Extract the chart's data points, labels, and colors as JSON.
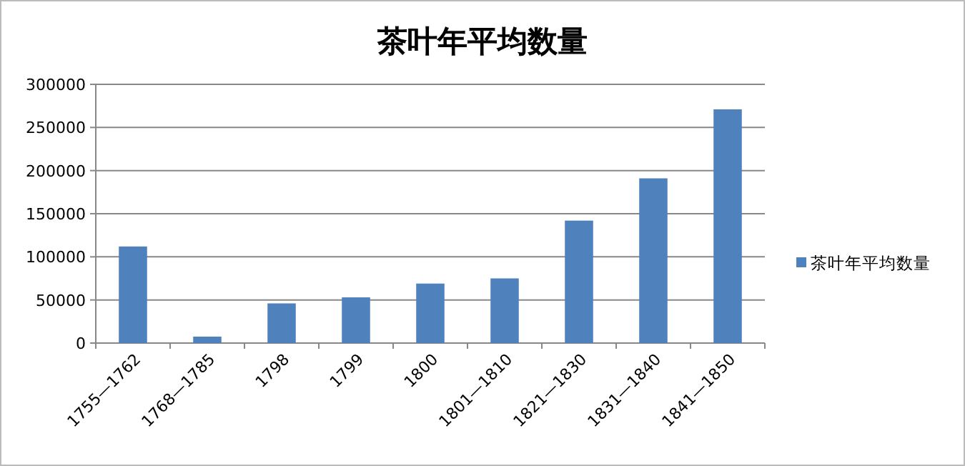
{
  "chart_data": {
    "type": "bar",
    "title": "茶叶年平均数量",
    "categories": [
      "1755—1762",
      "1768—1785",
      "1798",
      "1799",
      "1800",
      "1801—1810",
      "1821—1830",
      "1831—1840",
      "1841—1850"
    ],
    "series": [
      {
        "name": "茶叶年平均数量",
        "color": "#4f81bd",
        "values": [
          112000,
          7500,
          46000,
          53000,
          69000,
          75000,
          142000,
          191000,
          271000
        ]
      }
    ],
    "ylim": [
      0,
      300000
    ],
    "yticks": [
      0,
      50000,
      100000,
      150000,
      200000,
      250000,
      300000
    ],
    "grid": "y",
    "legend": "right"
  }
}
